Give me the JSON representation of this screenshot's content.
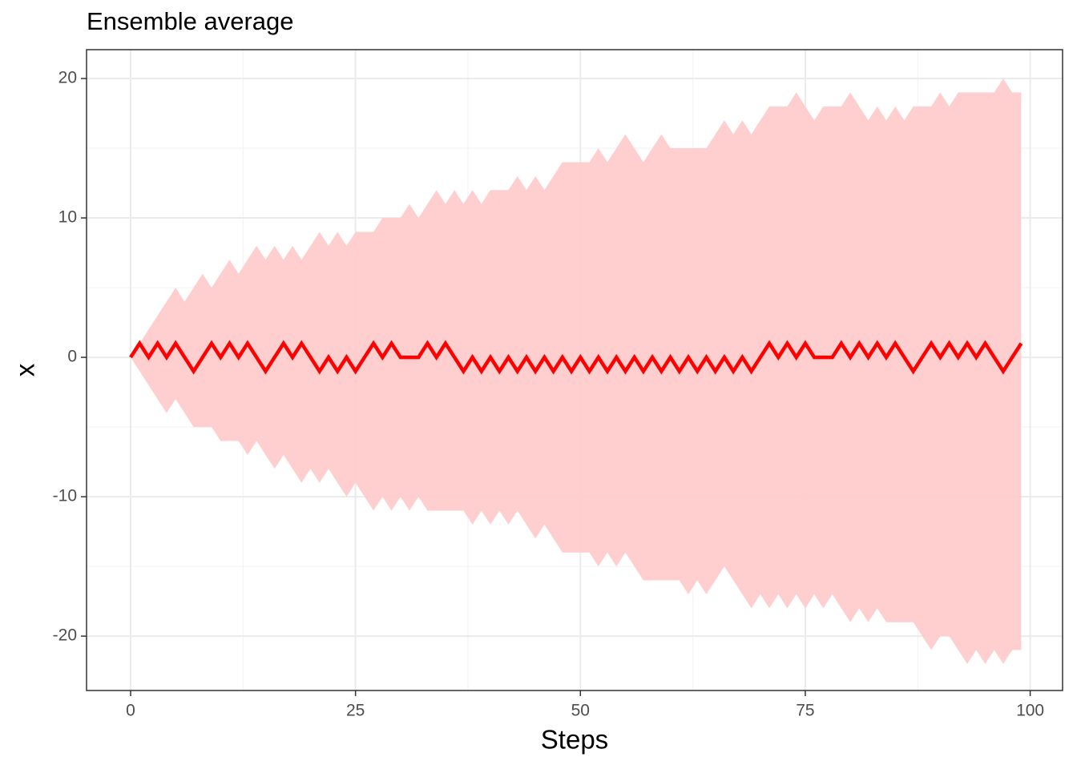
{
  "chart_data": {
    "type": "line",
    "title": "Ensemble average",
    "x_label": "Steps",
    "y_label": "x",
    "x": [
      0,
      1,
      2,
      3,
      4,
      5,
      6,
      7,
      8,
      9,
      10,
      11,
      12,
      13,
      14,
      15,
      16,
      17,
      18,
      19,
      20,
      21,
      22,
      23,
      24,
      25,
      26,
      27,
      28,
      29,
      30,
      31,
      32,
      33,
      34,
      35,
      36,
      37,
      38,
      39,
      40,
      41,
      42,
      43,
      44,
      45,
      46,
      47,
      48,
      49,
      50,
      51,
      52,
      53,
      54,
      55,
      56,
      57,
      58,
      59,
      60,
      61,
      62,
      63,
      64,
      65,
      66,
      67,
      68,
      69,
      70,
      71,
      72,
      73,
      74,
      75,
      76,
      77,
      78,
      79,
      80,
      81,
      82,
      83,
      84,
      85,
      86,
      87,
      88,
      89,
      90,
      91,
      92,
      93,
      94,
      95,
      96,
      97,
      98,
      99
    ],
    "series": [
      {
        "color": "#ff0000",
        "values": [
          0,
          1,
          0,
          1,
          0,
          1,
          0,
          -1,
          0,
          1,
          0,
          1,
          0,
          1,
          0,
          -1,
          0,
          1,
          0,
          1,
          0,
          -1,
          0,
          -1,
          0,
          -1,
          0,
          1,
          0,
          1,
          0,
          0,
          0,
          1,
          0,
          1,
          0,
          -1,
          0,
          -1,
          0,
          -1,
          0,
          -1,
          0,
          -1,
          0,
          -1,
          0,
          -1,
          0,
          -1,
          0,
          -1,
          0,
          -1,
          0,
          -1,
          0,
          -1,
          0,
          -1,
          0,
          -1,
          0,
          -1,
          0,
          -1,
          0,
          -1,
          0,
          1,
          0,
          1,
          0,
          1,
          0,
          0,
          0,
          1,
          0,
          1,
          0,
          1,
          0,
          1,
          0,
          -1,
          0,
          1,
          0,
          1,
          0,
          1,
          0,
          1,
          0,
          -1,
          0,
          1
        ]
      }
    ],
    "band": {
      "color": "#ffcccc",
      "upper": [
        0,
        1,
        2,
        3,
        4,
        5,
        4,
        5,
        6,
        5,
        6,
        7,
        6,
        7,
        8,
        7,
        8,
        7,
        8,
        7,
        8,
        9,
        8,
        9,
        8,
        9,
        9,
        9,
        10,
        10,
        10,
        11,
        10,
        11,
        12,
        11,
        12,
        11,
        12,
        11,
        12,
        12,
        12,
        13,
        12,
        13,
        12,
        13,
        14,
        14,
        14,
        14,
        15,
        14,
        15,
        16,
        15,
        14,
        15,
        16,
        15,
        15,
        15,
        15,
        15,
        16,
        17,
        16,
        17,
        16,
        17,
        18,
        18,
        18,
        19,
        18,
        17,
        18,
        18,
        18,
        19,
        18,
        17,
        18,
        17,
        18,
        17,
        18,
        18,
        18,
        19,
        18,
        19,
        19,
        19,
        19,
        19,
        20,
        19,
        19
      ],
      "lower": [
        0,
        -1,
        -2,
        -3,
        -4,
        -3,
        -4,
        -5,
        -5,
        -5,
        -6,
        -6,
        -6,
        -7,
        -6,
        -7,
        -8,
        -7,
        -8,
        -9,
        -8,
        -9,
        -8,
        -9,
        -10,
        -9,
        -10,
        -11,
        -10,
        -11,
        -10,
        -11,
        -10,
        -11,
        -11,
        -11,
        -11,
        -11,
        -12,
        -11,
        -12,
        -11,
        -12,
        -11,
        -12,
        -13,
        -12,
        -13,
        -14,
        -14,
        -14,
        -14,
        -15,
        -14,
        -15,
        -14,
        -15,
        -16,
        -16,
        -16,
        -16,
        -16,
        -17,
        -16,
        -17,
        -16,
        -15,
        -16,
        -17,
        -18,
        -17,
        -18,
        -17,
        -18,
        -17,
        -18,
        -17,
        -18,
        -17,
        -18,
        -19,
        -18,
        -19,
        -18,
        -19,
        -19,
        -19,
        -19,
        -20,
        -21,
        -20,
        -20,
        -21,
        -22,
        -21,
        -22,
        -21,
        -22,
        -21,
        -21
      ]
    },
    "xlim": [
      -4.9,
      103.6
    ],
    "ylim": [
      -23.9,
      22.07
    ],
    "xticks": [
      0,
      25,
      50,
      75,
      100
    ],
    "yticks": [
      -20,
      -10,
      0,
      10,
      20
    ],
    "grid": true,
    "minor_grid": true
  }
}
